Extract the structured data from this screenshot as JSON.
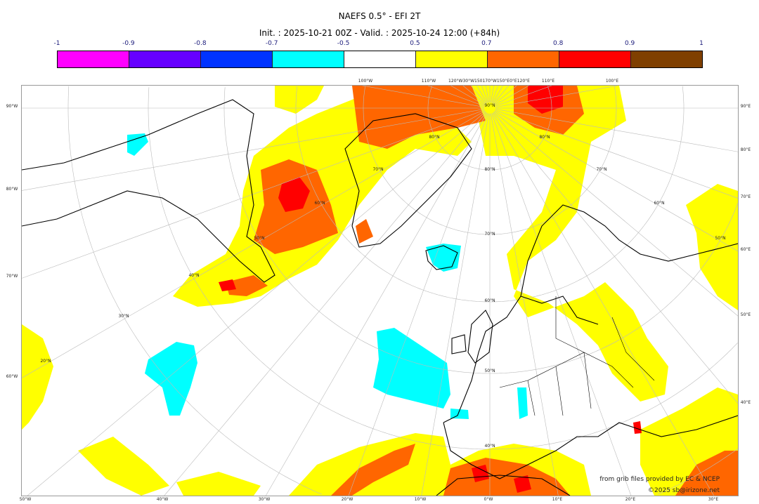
{
  "header": {
    "title": "NAEFS 0.5° - EFI 2T",
    "subtitle": "Init. : 2025-10-21 00Z - Valid. : 2025-10-24 12:00 (+84h)"
  },
  "colorbar": {
    "ticks": [
      "-1",
      "-0.9",
      "-0.8",
      "-0.7",
      "-0.5",
      "0.5",
      "0.7",
      "0.8",
      "0.9",
      "1"
    ],
    "colors": [
      "#ff00ff",
      "#6600ff",
      "#0033ff",
      "#00ffff",
      "#ffffff",
      "#ffff00",
      "#ff6600",
      "#ff0000",
      "#7f3f00"
    ]
  },
  "map": {
    "projection": "polar stereographic",
    "top_labels": [
      "100°W",
      "110°W",
      "120°W30°W150170°W150°E0°E120°E",
      "110°E",
      "100°E"
    ],
    "left_labels": [
      "90°W",
      "80°W",
      "70°W",
      "60°W"
    ],
    "right_labels": [
      "90°E",
      "80°E",
      "70°E",
      "60°E",
      "50°E",
      "40°E"
    ],
    "bottom_labels": [
      "50°W",
      "40°W",
      "30°W",
      "20°W",
      "10°W",
      "0°W",
      "10°E",
      "20°E",
      "30°E"
    ],
    "lat_labels": [
      "90°N",
      "80°N",
      "70°N",
      "60°N",
      "50°N",
      "40°N",
      "80°N",
      "70°N",
      "60°N",
      "50°N",
      "40°N",
      "30°N",
      "20°N",
      "80°N",
      "70°N",
      "60°N",
      "50°N"
    ]
  },
  "credits": {
    "source": "from grib files provided by EC & NCEP",
    "copyright": "©2025 sb@irizone.net"
  }
}
